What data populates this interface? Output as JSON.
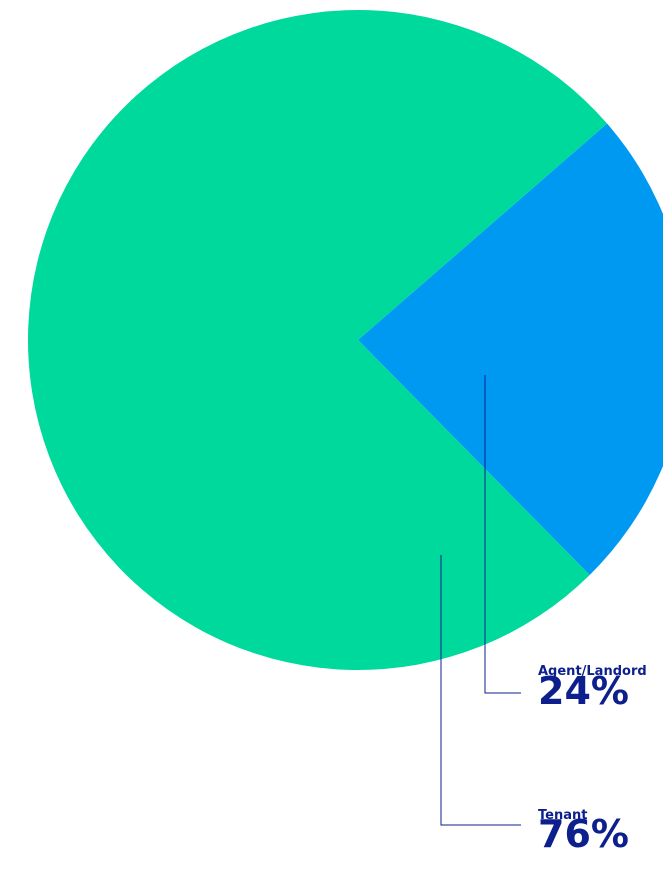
{
  "chart_data": {
    "type": "pie",
    "categories": [
      "Agent/Landord",
      "Tenant"
    ],
    "values": [
      24,
      76
    ],
    "value_labels": [
      "24%",
      "76%"
    ],
    "colors": [
      "#0099f2",
      "#00d99c"
    ],
    "label_color": "#0d1f8c",
    "title": "",
    "legend": "none"
  }
}
